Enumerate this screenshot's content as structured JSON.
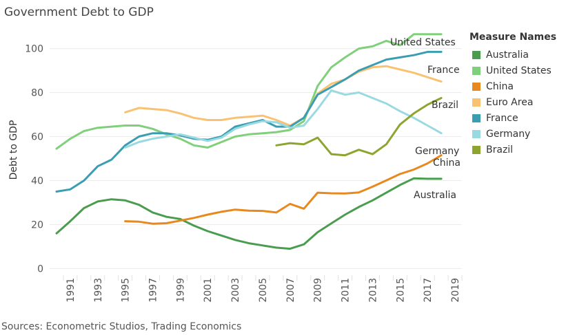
{
  "title": "Government Debt to GDP",
  "source": "Sources: Econometric Studios, Trading Economics",
  "legend_title": "Measure Names",
  "chart_data": {
    "type": "line",
    "title": "Government Debt to GDP",
    "ylabel": "Debt to GDP",
    "xlabel": "",
    "xlim": [
      1989.5,
      2019.5
    ],
    "ylim": [
      -3,
      108
    ],
    "yticks": [
      0,
      20,
      40,
      60,
      80,
      100
    ],
    "xticks": [
      1991,
      1993,
      1995,
      1997,
      1999,
      2001,
      2003,
      2005,
      2007,
      2009,
      2011,
      2013,
      2015,
      2017,
      2019
    ],
    "grid": "horizontal",
    "legend_position": "right",
    "series": [
      {
        "name": "Australia",
        "color": "#4a9c4f",
        "label": "Australia",
        "x": [
          1990,
          1991,
          1992,
          1993,
          1994,
          1995,
          1996,
          1997,
          1998,
          1999,
          2000,
          2001,
          2002,
          2003,
          2004,
          2005,
          2006,
          2007,
          2008,
          2009,
          2010,
          2011,
          2012,
          2013,
          2014,
          2015,
          2016,
          2017,
          2018
        ],
        "y": [
          16,
          21.5,
          27.5,
          30.5,
          31.5,
          31,
          29,
          25.5,
          23.5,
          22.5,
          19.5,
          17,
          15,
          13,
          11.5,
          10.5,
          9.5,
          9,
          11,
          16.5,
          20.5,
          24.5,
          28,
          31,
          34.5,
          38,
          41,
          40.8,
          40.8
        ]
      },
      {
        "name": "United States",
        "color": "#80cf7a",
        "label": "United States",
        "x": [
          1990,
          1991,
          1992,
          1993,
          1994,
          1995,
          1996,
          1997,
          1998,
          1999,
          2000,
          2001,
          2002,
          2003,
          2004,
          2005,
          2006,
          2007,
          2008,
          2009,
          2010,
          2011,
          2012,
          2013,
          2014,
          2015,
          2016,
          2017,
          2018
        ],
        "y": [
          54.5,
          59,
          62.5,
          64,
          64.5,
          65,
          65,
          63.5,
          61,
          59,
          56,
          55,
          57.5,
          60,
          61,
          61.5,
          62,
          63,
          67,
          83,
          91.5,
          96,
          100,
          101,
          103.5,
          101.5,
          106.5,
          106.5,
          106.5
        ]
      },
      {
        "name": "China",
        "color": "#e8891f",
        "label": "China",
        "x": [
          1995,
          1996,
          1997,
          1998,
          1999,
          2000,
          2001,
          2002,
          2003,
          2004,
          2005,
          2006,
          2007,
          2008,
          2009,
          2010,
          2011,
          2012,
          2013,
          2014,
          2015,
          2016,
          2017,
          2018
        ],
        "y": [
          21.5,
          21.3,
          20.4,
          20.6,
          21.8,
          23,
          24.5,
          25.8,
          26.8,
          26.3,
          26.2,
          25.5,
          29.4,
          27.2,
          34.5,
          34.2,
          34.1,
          34.6,
          37.2,
          40.1,
          43,
          45,
          47.8,
          51.5
        ]
      },
      {
        "name": "Euro Area",
        "color": "#f9c273",
        "label": "",
        "x": [
          1995,
          1996,
          1997,
          1998,
          1999,
          2000,
          2001,
          2002,
          2003,
          2004,
          2005,
          2006,
          2007,
          2008,
          2009,
          2010,
          2011,
          2012,
          2013,
          2014,
          2015,
          2016,
          2017,
          2018
        ],
        "y": [
          71,
          73,
          72.5,
          72,
          70.5,
          68.5,
          67.5,
          67.5,
          68.5,
          69,
          69.5,
          67.5,
          65,
          68.5,
          79.5,
          84,
          86,
          89.5,
          91.5,
          92,
          90.5,
          89,
          87,
          85
        ]
      },
      {
        "name": "France",
        "color": "#3a9db1",
        "label": "France",
        "x": [
          1990,
          1991,
          1992,
          1993,
          1994,
          1995,
          1996,
          1997,
          1998,
          1999,
          2000,
          2001,
          2002,
          2003,
          2004,
          2005,
          2006,
          2007,
          2008,
          2009,
          2010,
          2011,
          2012,
          2013,
          2014,
          2015,
          2016,
          2017,
          2018
        ],
        "y": [
          35,
          36,
          40,
          46.5,
          49.5,
          56,
          60,
          61.5,
          61.5,
          60.5,
          59,
          58.5,
          60,
          64.5,
          66,
          67.5,
          64.5,
          64.5,
          68.5,
          79,
          82.5,
          86,
          90,
          92.5,
          95,
          96,
          97,
          98.5,
          98.5
        ]
      },
      {
        "name": "Germany",
        "color": "#99d9e2",
        "label": "Germany",
        "x": [
          1995,
          1996,
          1997,
          1998,
          1999,
          2000,
          2001,
          2002,
          2003,
          2004,
          2005,
          2006,
          2007,
          2008,
          2009,
          2010,
          2011,
          2012,
          2013,
          2014,
          2015,
          2016,
          2017,
          2018
        ],
        "y": [
          55,
          57.5,
          59,
          60,
          61,
          59.5,
          58,
          59.5,
          63.5,
          65.5,
          67,
          66.5,
          64,
          65,
          72.5,
          81,
          79,
          80,
          77.5,
          75,
          71.5,
          68.5,
          65,
          61.5
        ]
      },
      {
        "name": "Brazil",
        "color": "#8da52e",
        "label": "Brazil",
        "x": [
          2006,
          2007,
          2008,
          2009,
          2010,
          2011,
          2012,
          2013,
          2014,
          2015,
          2016,
          2017,
          2018
        ],
        "y": [
          56,
          57,
          56.5,
          59.5,
          52,
          51.5,
          54,
          52,
          56.5,
          65.5,
          70.5,
          74.5,
          77.5
        ]
      }
    ]
  }
}
